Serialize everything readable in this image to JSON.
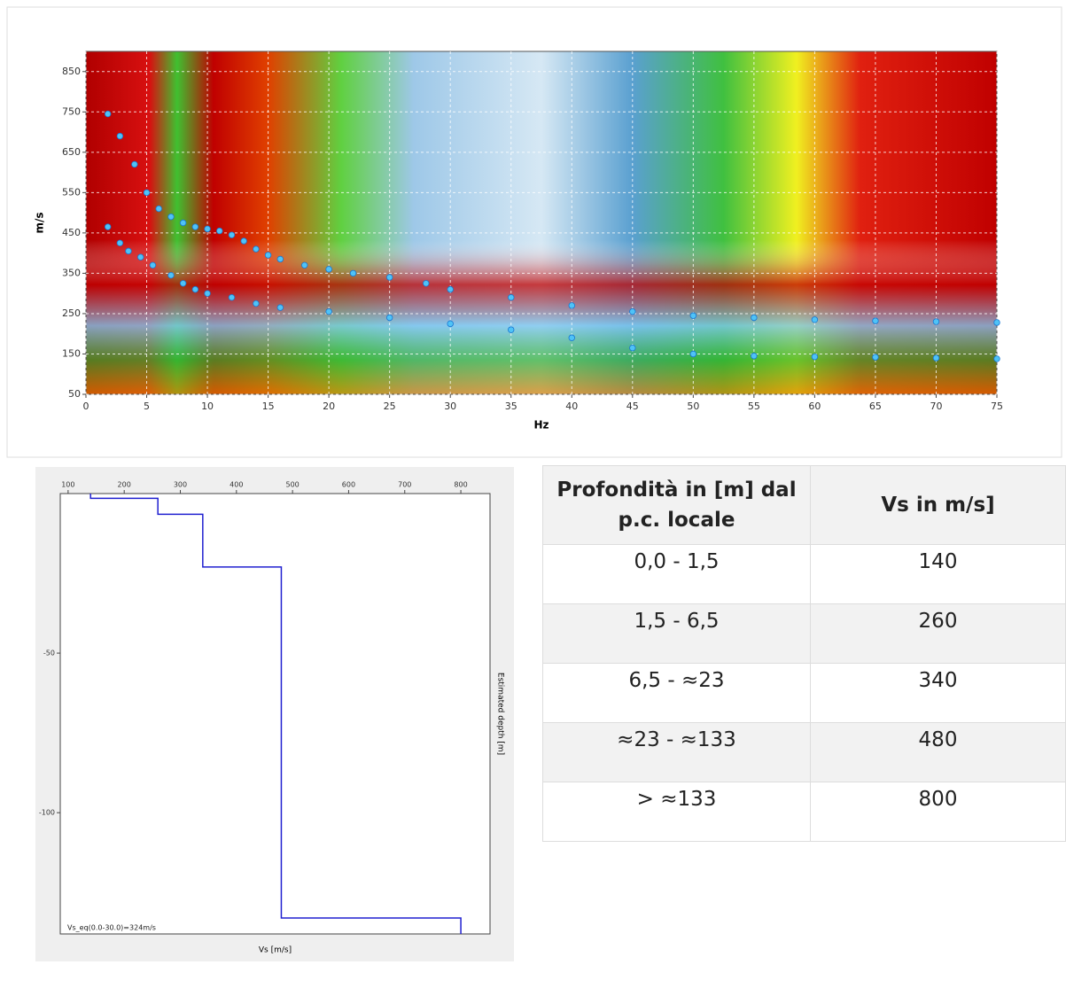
{
  "chart_data": [
    {
      "type": "scatter",
      "xlabel": "Hz",
      "ylabel": "m/s",
      "xlim": [
        0,
        75
      ],
      "xticks": [
        0,
        5,
        10,
        15,
        20,
        25,
        30,
        35,
        40,
        45,
        50,
        55,
        60,
        65,
        70,
        75
      ],
      "ylim": [
        50,
        900
      ],
      "yticks": [
        50,
        150,
        250,
        350,
        450,
        550,
        650,
        750,
        850
      ],
      "grid": true,
      "series": [
        {
          "color": "#4fc3f7",
          "x": [
            1.8,
            2.8,
            4,
            5,
            6,
            7,
            8,
            9,
            10,
            11,
            12,
            13,
            14,
            15,
            16,
            18,
            20,
            22,
            25,
            28,
            30,
            35,
            40,
            45,
            50,
            55,
            60,
            65,
            70,
            75
          ],
          "values": [
            745,
            690,
            620,
            550,
            510,
            490,
            475,
            465,
            460,
            455,
            445,
            430,
            410,
            395,
            385,
            370,
            360,
            350,
            340,
            325,
            310,
            290,
            270,
            255,
            245,
            240,
            235,
            232,
            230,
            228
          ]
        },
        {
          "color": "#4fc3f7",
          "x": [
            1.8,
            2.8,
            3.5,
            4.5,
            5.5,
            7,
            8,
            9,
            10,
            12,
            14,
            16,
            20,
            25,
            30,
            35,
            40,
            45,
            50,
            55,
            60,
            65,
            70,
            75
          ],
          "values": [
            465,
            425,
            405,
            390,
            370,
            345,
            325,
            310,
            300,
            290,
            275,
            265,
            255,
            240,
            225,
            210,
            190,
            165,
            150,
            145,
            143,
            142,
            140,
            138
          ]
        }
      ]
    },
    {
      "type": "line",
      "xlabel": "Vs [m/s]",
      "ylabel": "Estimated depth [m]",
      "annotation": "Vs_eq(0.0-30.0)=324m/s",
      "x_axis": "top",
      "xlim": [
        86,
        852
      ],
      "xticks": [
        100,
        200,
        300,
        400,
        500,
        600,
        700,
        800
      ],
      "ylim": [
        -138,
        0
      ],
      "yticks": [
        -50,
        -100
      ],
      "grid": false,
      "x": [
        140,
        140,
        260,
        260,
        340,
        340,
        480,
        480,
        800,
        800
      ],
      "series": [
        {
          "color": "#2020d0",
          "values": [
            0,
            -1.5,
            -1.5,
            -6.5,
            -6.5,
            -23,
            -23,
            -133,
            -133,
            -138
          ]
        }
      ]
    }
  ],
  "table": {
    "header": [
      "Profondità in [m] dal p.c. locale",
      "Vs in m/s]"
    ],
    "rows": [
      [
        "0,0 - 1,5",
        "140"
      ],
      [
        "1,5 - 6,5",
        "260"
      ],
      [
        "6,5 - ≈23",
        "340"
      ],
      [
        "≈23 - ≈133",
        "480"
      ],
      [
        "> ≈133",
        "800"
      ]
    ]
  }
}
